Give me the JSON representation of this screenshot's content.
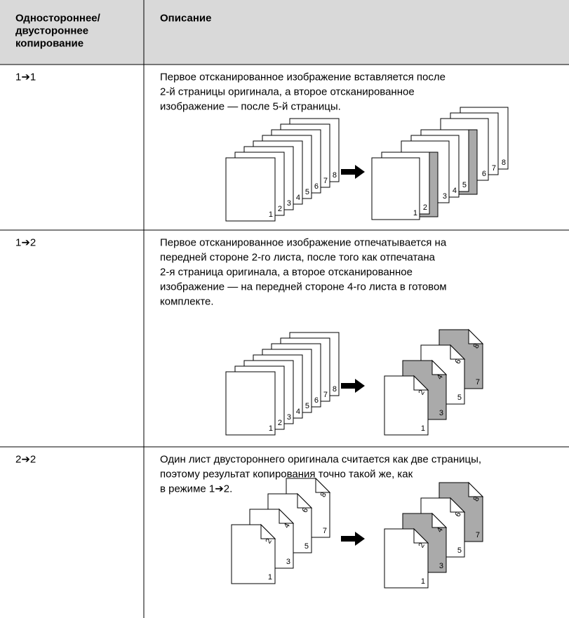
{
  "table": {
    "header": [
      [
        "Одностороннее/",
        "двустороннее",
        "копирование"
      ],
      [
        "Описание"
      ]
    ],
    "rows": [
      {
        "mode": "1➔1",
        "description": [
          "Первое отсканированное изображение вставляется после",
          "2-й страницы оригинала, а второе отсканированное",
          "изображение — после 5-й страницы."
        ],
        "figure": {
          "originals": [
            "1",
            "2",
            "3",
            "4",
            "5",
            "6",
            "7",
            "8"
          ],
          "result": [
            "1",
            "2",
            "3",
            "4",
            "5",
            "6",
            "7",
            "8"
          ]
        }
      },
      {
        "mode": "1➔2",
        "description": [
          "Первое отсканированное изображение отпечатывается на",
          "передней стороне 2-го листа, после того как отпечатана",
          "2-я страница оригинала, а второе отсканированное",
          "изображение — на передней стороне 4-го листа в готовом",
          "комплекте."
        ],
        "figure": {
          "originals": [
            "1",
            "2",
            "3",
            "4",
            "5",
            "6",
            "7",
            "8"
          ],
          "result": [
            "1",
            "2",
            "3",
            "4",
            "5",
            "6",
            "7",
            "8"
          ]
        }
      },
      {
        "mode": "2➔2",
        "description": [
          "Один лист двустороннего оригинала считается как две страницы,",
          "поэтому результат копирования точно такой же, как",
          "в режиме 1➔2."
        ],
        "figure": {
          "originals": [
            "1",
            "2",
            "3",
            "4",
            "5",
            "6",
            "7",
            "8"
          ],
          "result": [
            "1",
            "2",
            "3",
            "4",
            "5",
            "6",
            "7",
            "8"
          ]
        }
      }
    ]
  }
}
